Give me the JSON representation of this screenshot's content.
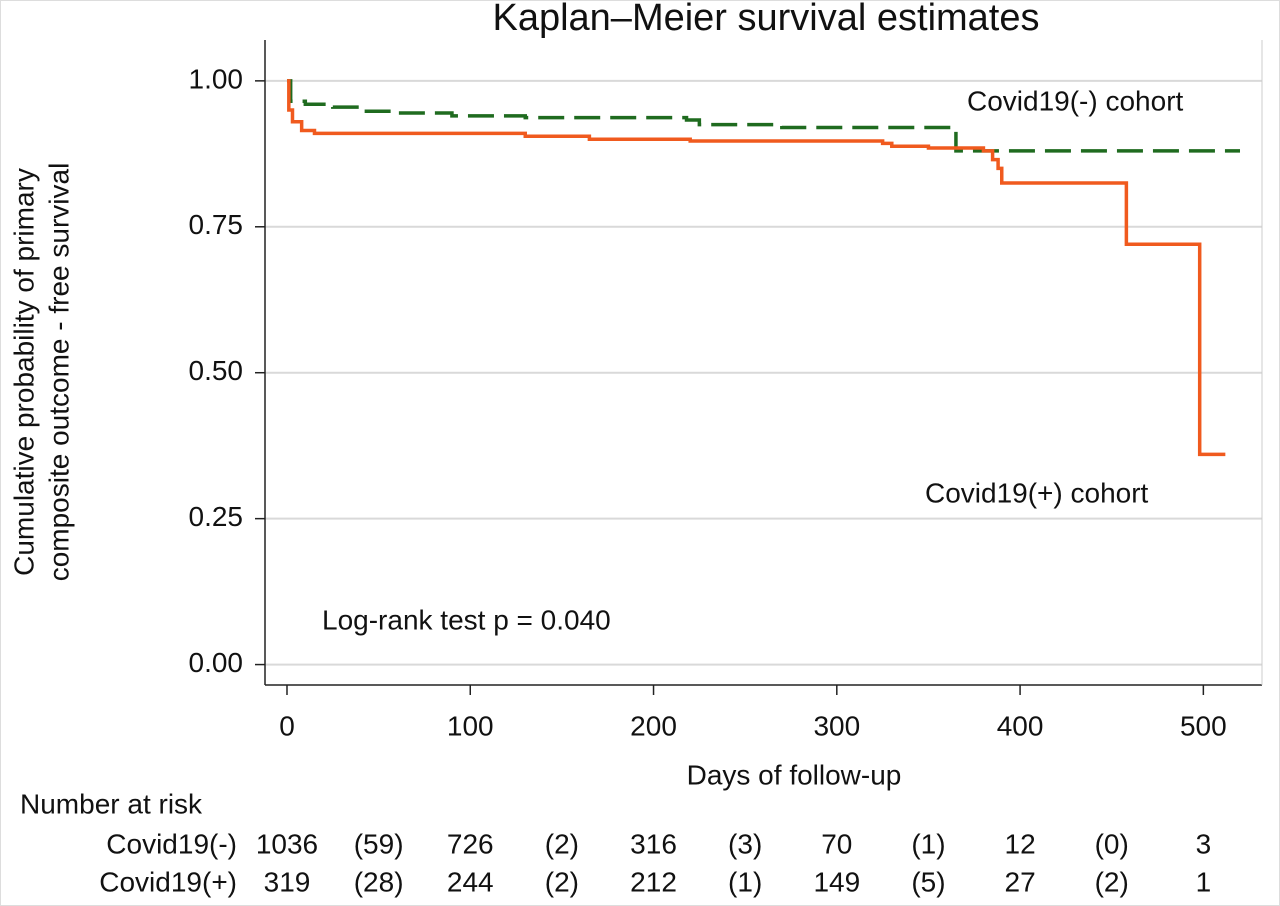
{
  "chart_data": {
    "type": "line",
    "step": "post",
    "title": "Kaplan–Meier survival estimates",
    "x_label": "Days of follow-up",
    "y_label": [
      "Cumulative probability of primary",
      "composite outcome - free survival"
    ],
    "xlim": [
      -12,
      532
    ],
    "ylim": [
      -0.035,
      1.07
    ],
    "xticks": [
      0,
      100,
      200,
      300,
      400,
      500
    ],
    "yticks": [
      {
        "value": 0,
        "label": "0.00"
      },
      {
        "value": 0.25,
        "label": "0.25"
      },
      {
        "value": 0.5,
        "label": "0.50"
      },
      {
        "value": 0.75,
        "label": "0.75"
      },
      {
        "value": 1,
        "label": "1.00"
      }
    ],
    "grid": true,
    "series": [
      {
        "name": "Covid19(-) cohort",
        "color": "#1f6b1f",
        "dash": true,
        "x": [
          0,
          2,
          10,
          25,
          40,
          60,
          90,
          130,
          218,
          225,
          270,
          365,
          520
        ],
        "values": [
          1.0,
          0.965,
          0.96,
          0.955,
          0.948,
          0.945,
          0.94,
          0.937,
          0.933,
          0.925,
          0.92,
          0.88,
          0.88
        ]
      },
      {
        "name": "Covid19(+) cohort",
        "color": "#f05a1e",
        "dash": false,
        "x": [
          0,
          1,
          3,
          8,
          15,
          130,
          165,
          220,
          325,
          330,
          350,
          380,
          385,
          388,
          390,
          458,
          498,
          512
        ],
        "values": [
          1.0,
          0.95,
          0.93,
          0.915,
          0.91,
          0.905,
          0.9,
          0.897,
          0.893,
          0.888,
          0.885,
          0.88,
          0.865,
          0.85,
          0.825,
          0.72,
          0.36,
          0.36
        ]
      }
    ],
    "annotation": "Log-rank test p = 0.040",
    "risk_table": {
      "title": "Number at risk",
      "at_risk_x": [
        0,
        100,
        200,
        300,
        400,
        500
      ],
      "censored_x": [
        50,
        150,
        250,
        350,
        450
      ],
      "rows": [
        {
          "label": "Covid19(-)",
          "at_risk": [
            1036,
            726,
            316,
            70,
            12,
            3
          ],
          "censored": [
            59,
            2,
            3,
            1,
            0
          ],
          "censored_labels": [
            "(59)",
            "(2)",
            "(3)",
            "(1)",
            "(0)"
          ]
        },
        {
          "label": "Covid19(+)",
          "at_risk": [
            319,
            244,
            212,
            149,
            27,
            1
          ],
          "censored": [
            28,
            2,
            1,
            5,
            2
          ],
          "censored_labels": [
            "(28)",
            "(2)",
            "(1)",
            "(5)",
            "(2)"
          ]
        }
      ]
    }
  }
}
